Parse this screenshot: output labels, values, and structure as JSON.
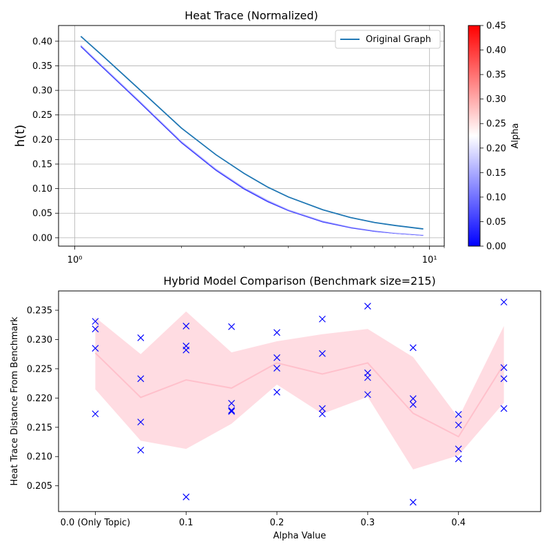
{
  "chart_data": [
    {
      "type": "line",
      "title": "Heat Trace (Normalized)",
      "xlabel": "",
      "ylabel": "h(t)",
      "xscale": "log",
      "xlim": [
        0.9,
        11
      ],
      "ylim": [
        -0.017,
        0.432
      ],
      "x_ticks": [
        1,
        10
      ],
      "x_tick_labels": [
        "10⁰",
        "10¹"
      ],
      "y_ticks": [
        0.0,
        0.05,
        0.1,
        0.15,
        0.2,
        0.25,
        0.3,
        0.35,
        0.4
      ],
      "y_tick_labels": [
        "0.00",
        "0.05",
        "0.10",
        "0.15",
        "0.20",
        "0.25",
        "0.30",
        "0.35",
        "0.40"
      ],
      "grid": true,
      "legend": "top-right",
      "original_series": {
        "name": "Original Graph",
        "color": "#1f77b4",
        "x": [
          1.04,
          1.2,
          1.5,
          2.0,
          2.5,
          3.0,
          3.5,
          4.0,
          5.0,
          6.0,
          7.0,
          8.0,
          9.6
        ],
        "y": [
          0.41,
          0.37,
          0.306,
          0.223,
          0.169,
          0.131,
          0.103,
          0.083,
          0.057,
          0.041,
          0.031,
          0.025,
          0.018
        ]
      },
      "alpha_series": [
        {
          "alpha": 0.0,
          "x": [
            1.04,
            1.2,
            1.5,
            2.0,
            2.5,
            3.0,
            3.5,
            4.0,
            5.0,
            6.0,
            7.0,
            8.0,
            9.6
          ],
          "y": [
            0.389,
            0.346,
            0.28,
            0.193,
            0.137,
            0.099,
            0.073,
            0.055,
            0.032,
            0.02,
            0.013,
            0.009,
            0.005
          ]
        },
        {
          "alpha": 0.05,
          "x": [
            1.04,
            1.2,
            1.5,
            2.0,
            2.5,
            3.0,
            3.5,
            4.0,
            5.0,
            6.0,
            7.0,
            8.0,
            9.6
          ],
          "y": [
            0.39,
            0.347,
            0.281,
            0.194,
            0.138,
            0.1,
            0.074,
            0.056,
            0.033,
            0.021,
            0.013,
            0.009,
            0.005
          ]
        },
        {
          "alpha": 0.1,
          "x": [
            1.04,
            1.2,
            1.5,
            2.0,
            2.5,
            3.0,
            3.5,
            4.0,
            5.0,
            6.0,
            7.0,
            8.0,
            9.6
          ],
          "y": [
            0.391,
            0.348,
            0.282,
            0.195,
            0.139,
            0.101,
            0.075,
            0.056,
            0.033,
            0.021,
            0.014,
            0.009,
            0.005
          ]
        },
        {
          "alpha": 0.15,
          "x": [
            1.04,
            1.2,
            1.5,
            2.0,
            2.5,
            3.0,
            3.5,
            4.0,
            5.0,
            6.0,
            7.0,
            8.0,
            9.6
          ],
          "y": [
            0.392,
            0.349,
            0.283,
            0.196,
            0.14,
            0.102,
            0.076,
            0.057,
            0.034,
            0.022,
            0.014,
            0.01,
            0.006
          ]
        },
        {
          "alpha": 0.2,
          "x": [
            1.04,
            1.2,
            1.5,
            2.0,
            2.5,
            3.0,
            3.5,
            4.0,
            5.0,
            6.0,
            7.0,
            8.0,
            9.6
          ],
          "y": [
            0.393,
            0.35,
            0.284,
            0.197,
            0.141,
            0.103,
            0.077,
            0.058,
            0.035,
            0.022,
            0.015,
            0.01,
            0.006
          ]
        }
      ],
      "colorbar": {
        "label": "Alpha",
        "min": 0.0,
        "max": 0.45,
        "ticks": [
          "0.00",
          "0.05",
          "0.10",
          "0.15",
          "0.20",
          "0.25",
          "0.30",
          "0.35",
          "0.40",
          "0.45"
        ],
        "colormap": "bwr",
        "colors": [
          "#0000ff",
          "#ffffff",
          "#ff0000"
        ]
      }
    },
    {
      "type": "scatter",
      "title": "Hybrid Model Comparison (Benchmark size=215)",
      "xlabel": "Alpha Value",
      "ylabel": "Heat Trace Distance From Benchmark",
      "xlim": [
        -0.0405,
        0.4905
      ],
      "ylim": [
        0.2006,
        0.2383
      ],
      "x_ticks": [
        0.0,
        0.1,
        0.2,
        0.3,
        0.4
      ],
      "x_tick_labels": [
        "0.0 (Only Topic)",
        "0.1",
        "0.2",
        "0.3",
        "0.4"
      ],
      "y_ticks": [
        0.205,
        0.21,
        0.215,
        0.22,
        0.225,
        0.23,
        0.235
      ],
      "y_tick_labels": [
        "0.205",
        "0.210",
        "0.215",
        "0.220",
        "0.225",
        "0.230",
        "0.235"
      ],
      "grid": false,
      "marker_color": "#0000ff",
      "band_color": "#ffc0cb",
      "points": [
        {
          "alpha": 0.0,
          "values": [
            0.2331,
            0.2318,
            0.2285,
            0.2173
          ]
        },
        {
          "alpha": 0.05,
          "values": [
            0.2303,
            0.2233,
            0.2159,
            0.2111
          ]
        },
        {
          "alpha": 0.1,
          "values": [
            0.2323,
            0.2289,
            0.2282,
            0.2031
          ]
        },
        {
          "alpha": 0.15,
          "values": [
            0.2322,
            0.2191,
            0.2179,
            0.2177
          ]
        },
        {
          "alpha": 0.2,
          "values": [
            0.2312,
            0.2269,
            0.2251,
            0.221
          ]
        },
        {
          "alpha": 0.25,
          "values": [
            0.2335,
            0.2276,
            0.2182,
            0.2173
          ]
        },
        {
          "alpha": 0.3,
          "values": [
            0.2357,
            0.2243,
            0.2235,
            0.2206
          ]
        },
        {
          "alpha": 0.35,
          "values": [
            0.2286,
            0.2199,
            0.2189,
            0.2022
          ]
        },
        {
          "alpha": 0.4,
          "values": [
            0.2172,
            0.2154,
            0.2113,
            0.2096
          ]
        },
        {
          "alpha": 0.45,
          "values": [
            0.2364,
            0.2252,
            0.2233,
            0.2182
          ]
        }
      ],
      "mean": [
        0.2277,
        0.2201,
        0.2231,
        0.2217,
        0.226,
        0.2241,
        0.226,
        0.2174,
        0.2134,
        0.2258
      ],
      "band_upper": [
        0.2338,
        0.2275,
        0.2348,
        0.2278,
        0.2297,
        0.2309,
        0.2318,
        0.227,
        0.2166,
        0.2323
      ],
      "band_lower": [
        0.2215,
        0.2127,
        0.2113,
        0.2156,
        0.2223,
        0.2173,
        0.2202,
        0.2078,
        0.2102,
        0.2192
      ]
    }
  ]
}
